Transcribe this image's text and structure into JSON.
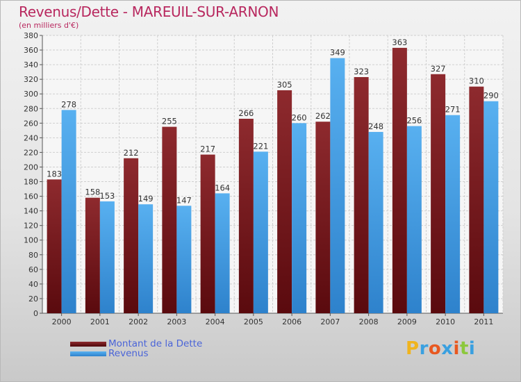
{
  "title": "Revenus/Dette - MAREUIL-SUR-ARNON",
  "subtitle": "(en milliers d'€)",
  "colors": {
    "dette": "#7a1a1e",
    "revenus": "#4aa3e6",
    "title": "#b8275e",
    "legend_text": "#4a64d8"
  },
  "logo": {
    "letters": [
      "P",
      "r",
      "o",
      "x",
      "i",
      "t",
      "i"
    ],
    "colors": [
      "#f0b41e",
      "#3aa0e0",
      "#e85820",
      "#3aa0e0",
      "#e85820",
      "#8cc83c",
      "#3aa0e0"
    ],
    "icon": "proxiti-logo"
  },
  "chart_data": {
    "type": "bar",
    "title": "Revenus/Dette - MAREUIL-SUR-ARNON",
    "subtitle": "(en milliers d'€)",
    "categories": [
      "2000",
      "2001",
      "2002",
      "2003",
      "2004",
      "2005",
      "2006",
      "2007",
      "2008",
      "2009",
      "2010",
      "2011"
    ],
    "series": [
      {
        "name": "Montant de la Dette",
        "values": [
          183,
          158,
          212,
          255,
          217,
          266,
          305,
          262,
          323,
          363,
          327,
          310
        ]
      },
      {
        "name": "Revenus",
        "values": [
          278,
          153,
          149,
          147,
          164,
          221,
          260,
          349,
          248,
          256,
          271,
          290
        ]
      }
    ],
    "ylim": [
      0,
      380
    ],
    "yticks": [
      0,
      20,
      40,
      60,
      80,
      100,
      120,
      140,
      160,
      180,
      200,
      220,
      240,
      260,
      280,
      300,
      320,
      340,
      360,
      380
    ],
    "grid": true,
    "legend": "bottom-left",
    "data_labels": true
  }
}
